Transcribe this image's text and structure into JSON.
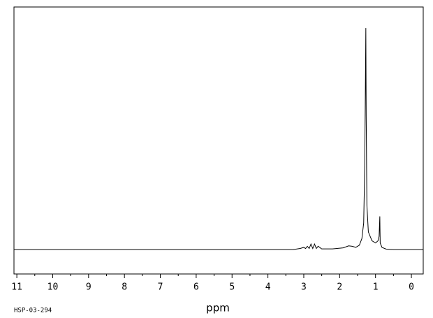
{
  "chart_data": {
    "type": "line",
    "xlabel": "ppm",
    "annotation": "HSP-03-294",
    "color": "#000000",
    "xlim": [
      11.08,
      -0.33
    ],
    "ylim": [
      -11,
      109.5
    ],
    "xticks": [
      11,
      10,
      9,
      8,
      7,
      6,
      5,
      4,
      3,
      2,
      1,
      0
    ],
    "x": [
      11.08,
      9.0,
      7.0,
      5.0,
      3.3,
      3.1,
      3.0,
      2.95,
      2.9,
      2.85,
      2.8,
      2.75,
      2.7,
      2.65,
      2.6,
      2.5,
      2.2,
      1.9,
      1.75,
      1.65,
      1.55,
      1.45,
      1.38,
      1.33,
      1.3,
      1.28,
      1.27,
      1.26,
      1.24,
      1.2,
      1.1,
      1.0,
      0.93,
      0.9,
      0.88,
      0.87,
      0.82,
      0.7,
      0.5,
      -0.33
    ],
    "values": [
      0,
      0,
      0,
      0,
      0,
      0.5,
      1,
      0.5,
      1.5,
      0.5,
      2.5,
      0.5,
      2.5,
      0.5,
      1.5,
      0.3,
      0.3,
      0.8,
      1.7,
      1.5,
      1.0,
      2,
      5,
      12,
      38,
      78,
      100,
      60,
      20,
      8,
      4,
      3,
      4,
      6,
      15,
      3,
      1,
      0.2,
      0,
      0
    ]
  }
}
